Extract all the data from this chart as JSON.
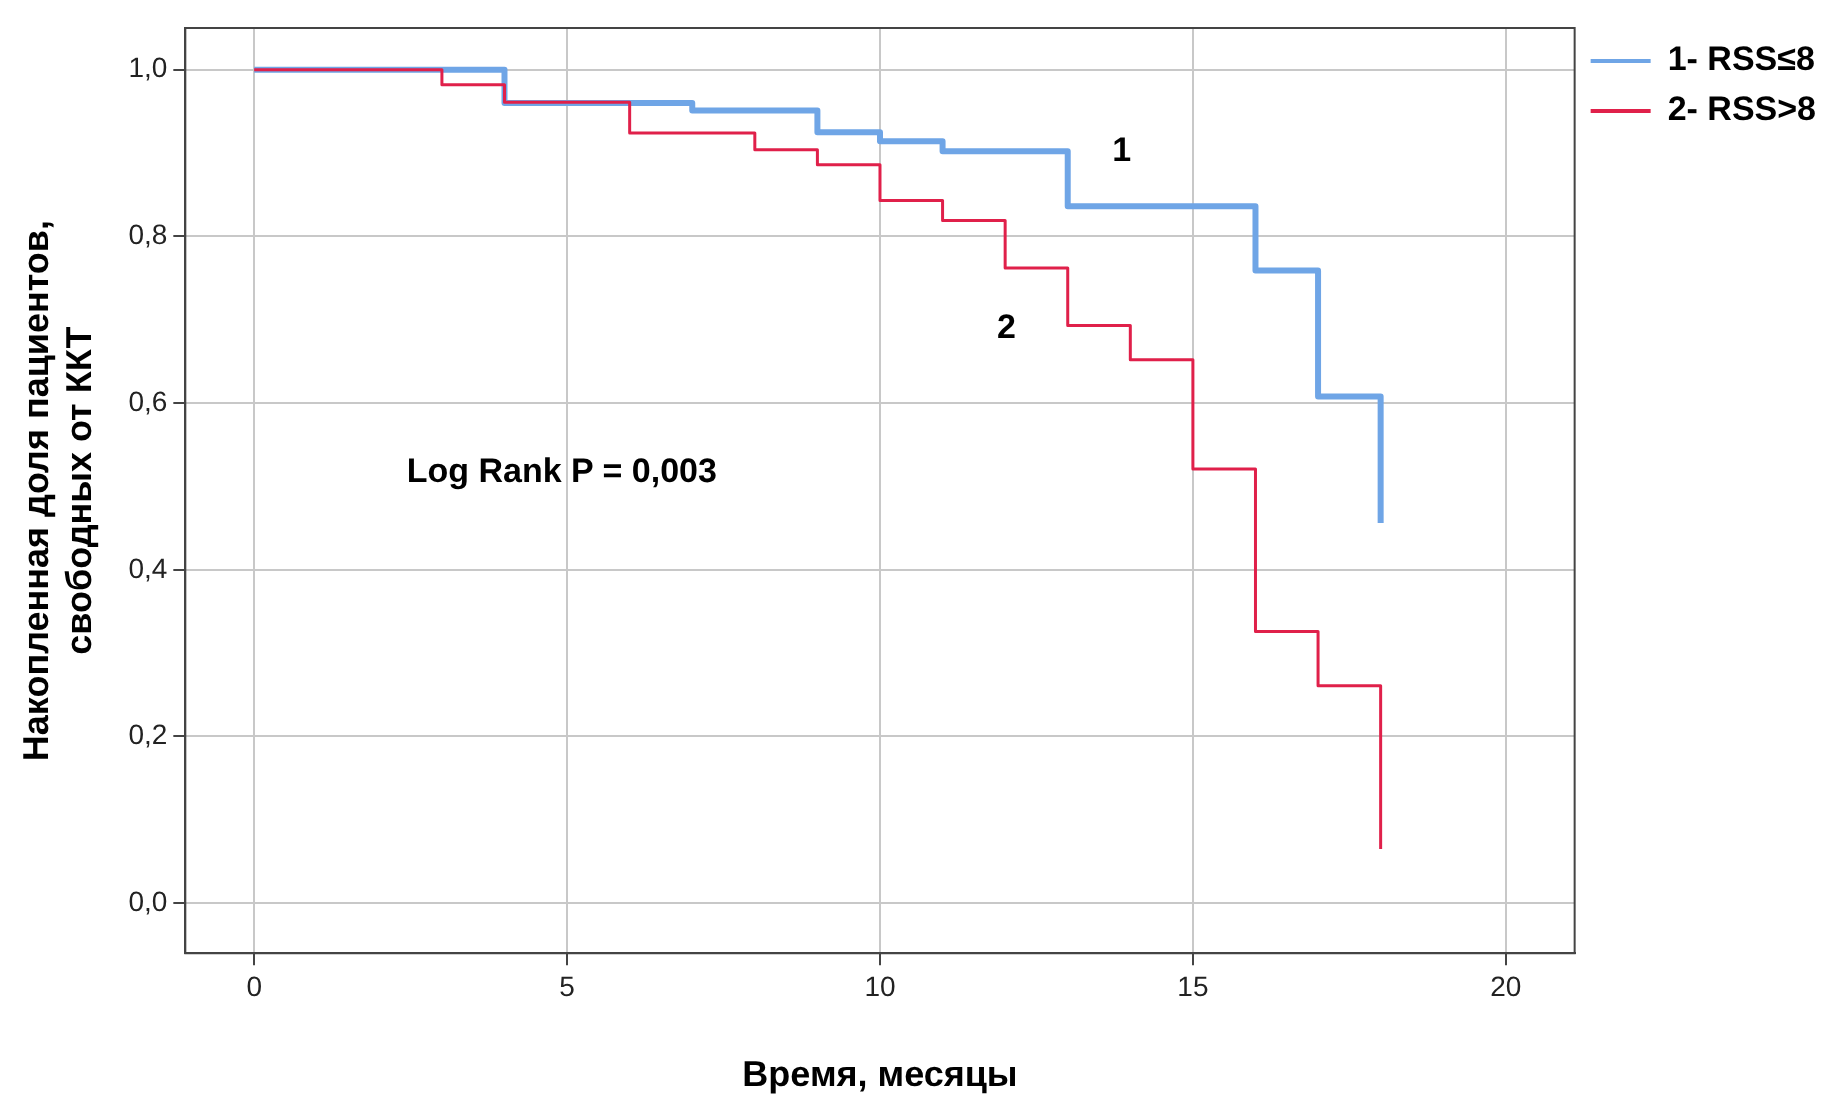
{
  "chart_data": {
    "type": "step",
    "xlabel": "Время, месяцы",
    "ylabel": "Накопленная доля пациентов,\nсвободных от ККТ",
    "series": [
      {
        "name": "1- RSS≤8",
        "color": "#6fa5e6",
        "x": [
          0,
          4,
          7,
          9,
          10,
          11,
          13,
          16,
          17,
          18
        ],
        "values": [
          1,
          0.96,
          0.951,
          0.925,
          0.914,
          0.902,
          0.836,
          0.759,
          0.608,
          0.456
        ]
      },
      {
        "name": "2- RSS>8",
        "color": "#e0204a",
        "x": [
          0,
          3,
          4,
          6,
          8,
          9,
          10,
          11,
          12,
          13,
          14,
          15,
          16,
          17,
          18
        ],
        "values": [
          1,
          0.982,
          0.961,
          0.924,
          0.904,
          0.886,
          0.843,
          0.819,
          0.762,
          0.693,
          0.652,
          0.521,
          0.326,
          0.261,
          0.065
        ]
      }
    ],
    "xlim": [
      -1.1,
      21.1
    ],
    "xticks": [
      0,
      5,
      10,
      15,
      20
    ],
    "ylim": [
      -0.06,
      1.05
    ],
    "yticks": [
      {
        "value": 0,
        "label": "0,0"
      },
      {
        "value": 0.2,
        "label": "0,2"
      },
      {
        "value": 0.4,
        "label": "0,4"
      },
      {
        "value": 0.6,
        "label": "0,6"
      },
      {
        "value": 0.8,
        "label": "0,8"
      },
      {
        "value": 1,
        "label": "1,0"
      }
    ],
    "annotations": [
      "Log Rank P = 0,003",
      "1",
      "2"
    ],
    "grid": true,
    "legend": "top right",
    "marker": "none",
    "line_style": "solid"
  }
}
